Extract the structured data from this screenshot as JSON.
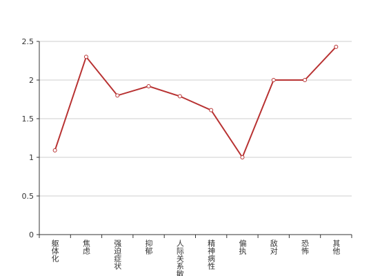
{
  "chart_data": {
    "type": "line",
    "categories": [
      "躯体化",
      "焦虑",
      "强迫症状",
      "抑郁",
      "人际关系敏感",
      "精神病性",
      "偏执",
      "敌对",
      "恐怖",
      "其他"
    ],
    "series": [
      {
        "color": "#b83232",
        "values": [
          1.09,
          2.3,
          1.8,
          1.92,
          1.79,
          1.61,
          1.0,
          2.0,
          2.0,
          2.43
        ]
      }
    ],
    "ylim": [
      0,
      2.5
    ],
    "yticks": [
      0,
      0.5,
      1,
      1.5,
      2,
      2.5
    ],
    "grid": true
  }
}
